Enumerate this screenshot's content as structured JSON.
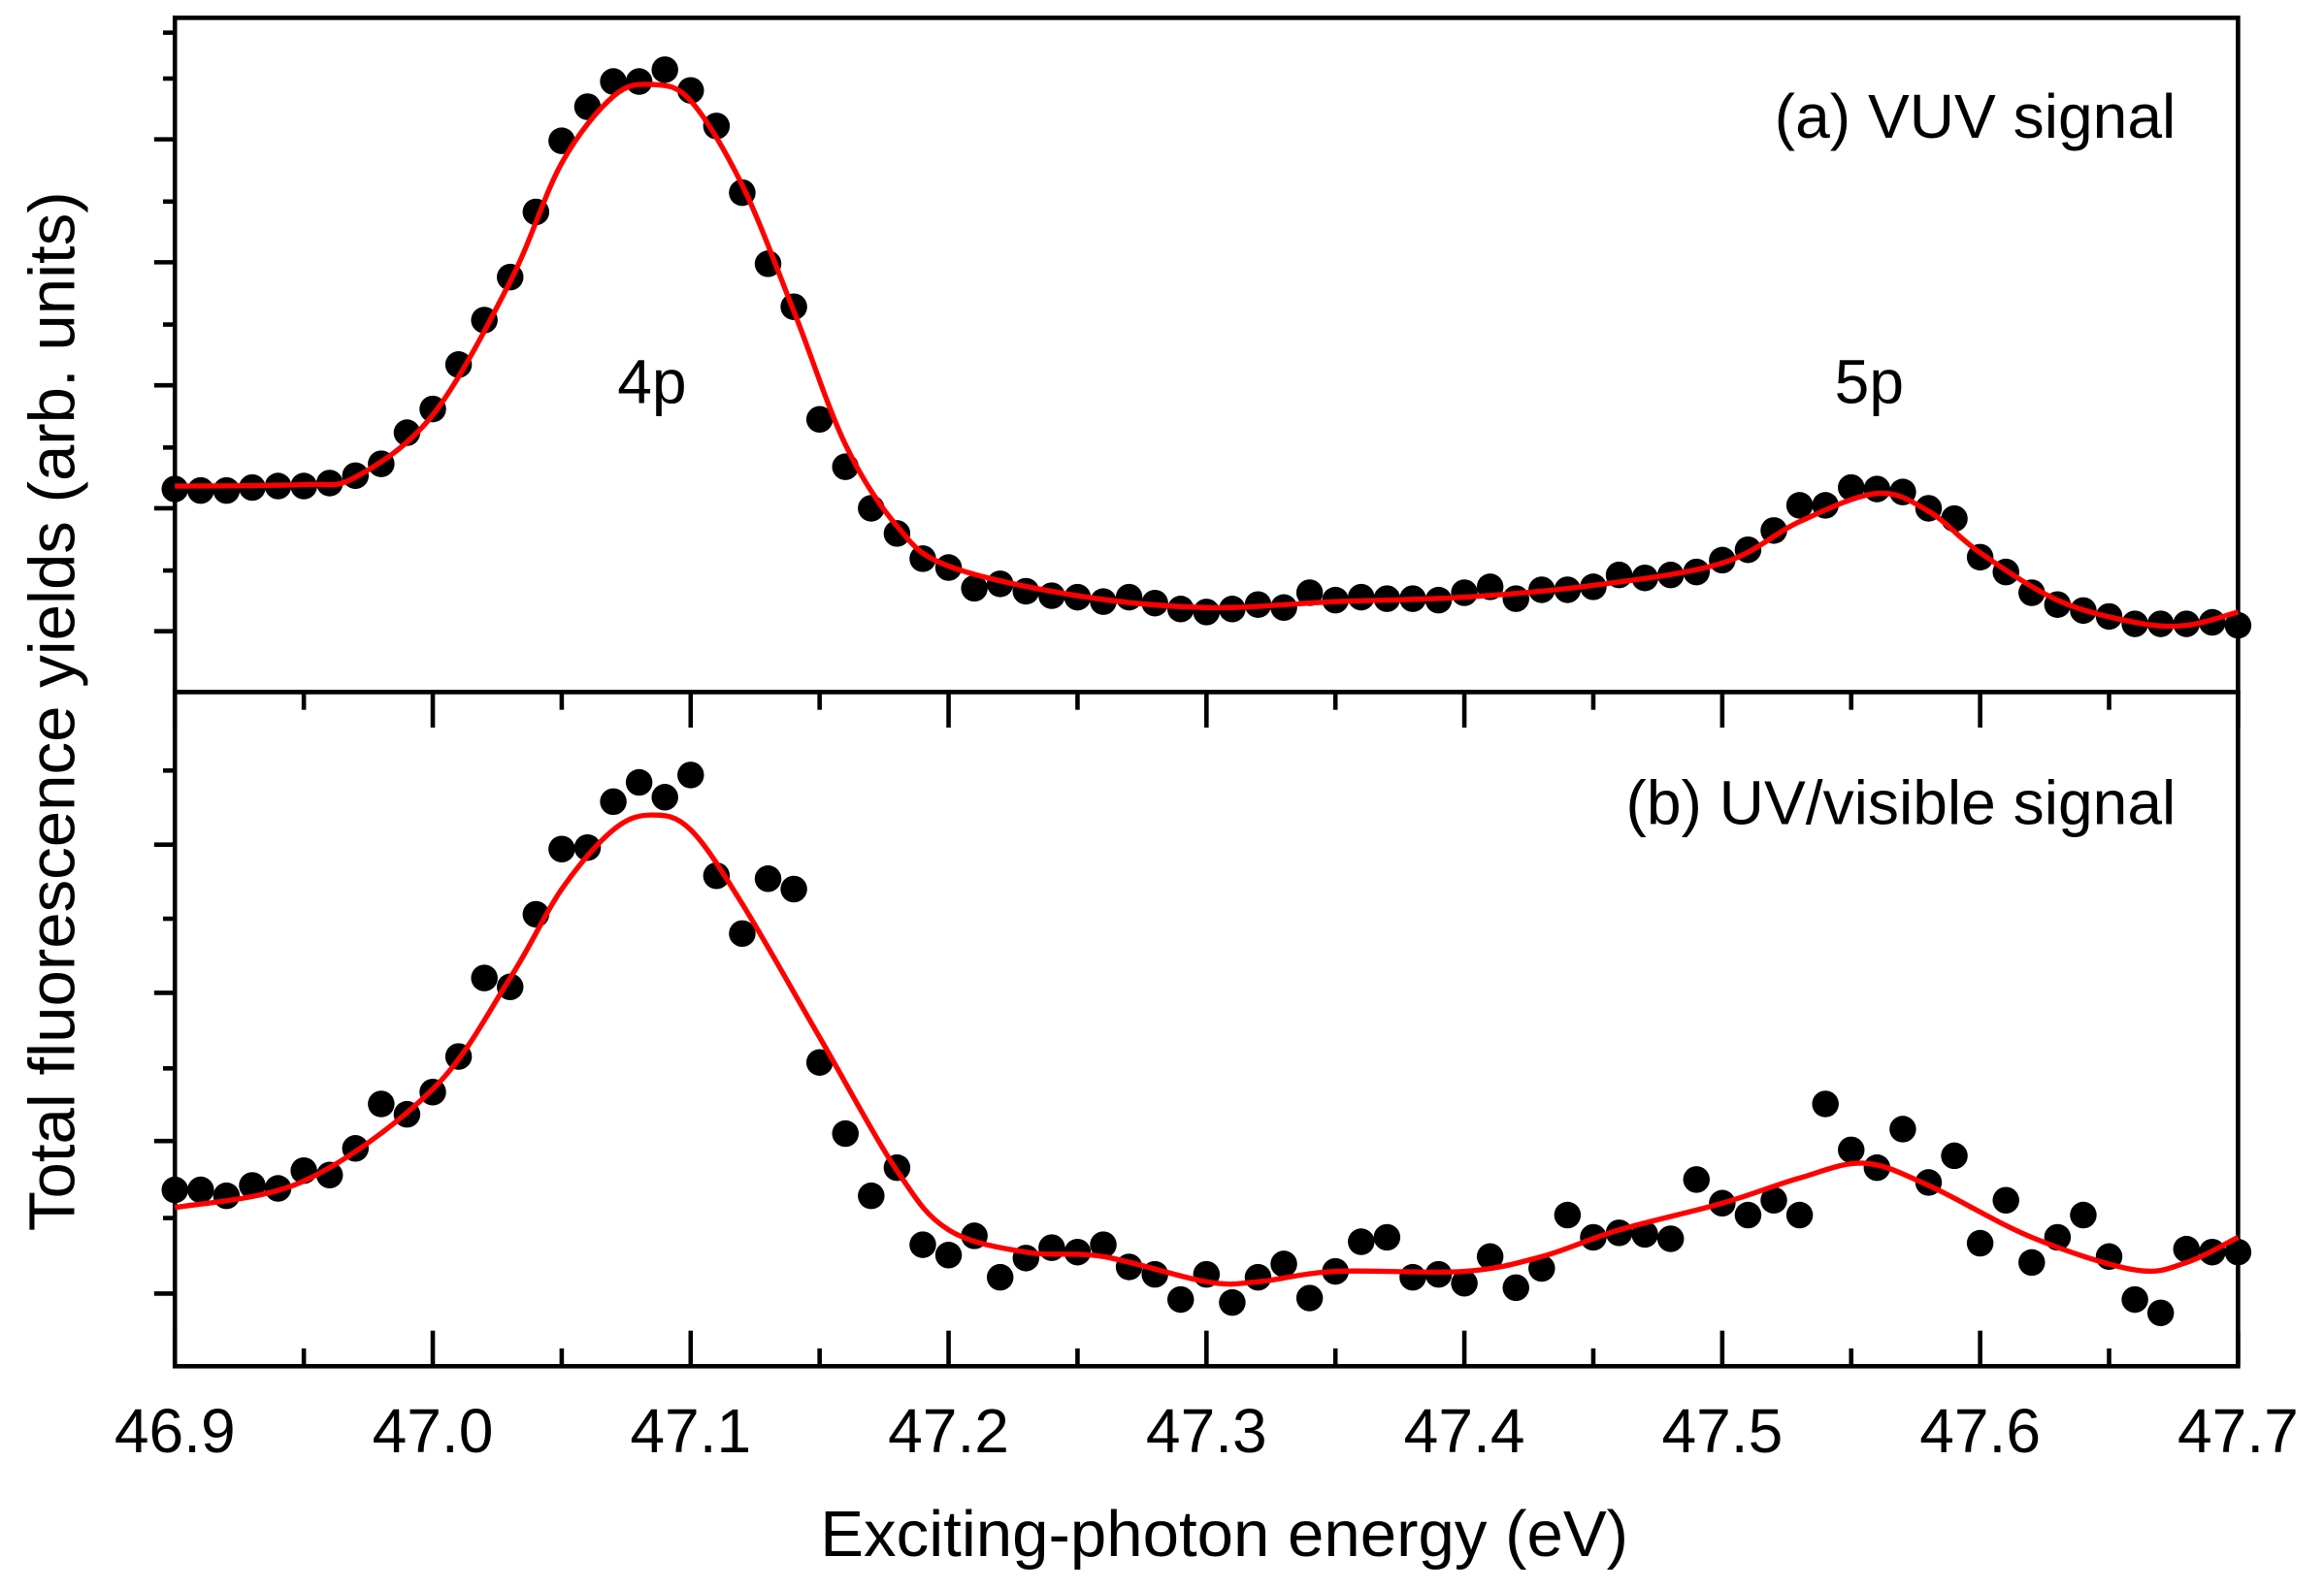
{
  "chart_data": {
    "type": "scatter",
    "xlabel": "Exciting-photon energy (eV)",
    "ylabel": "Total fluorescence yields (arb. units)",
    "xlim": [
      46.9,
      47.7
    ],
    "xticks_major": [
      46.9,
      47.0,
      47.1,
      47.2,
      47.3,
      47.4,
      47.5,
      47.6,
      47.7
    ],
    "xtick_labels": [
      "46.9",
      "47.0",
      "47.1",
      "47.2",
      "47.3",
      "47.4",
      "47.5",
      "47.6",
      "47.7"
    ],
    "xticks_minor": [
      46.95,
      47.05,
      47.15,
      47.25,
      47.35,
      47.45,
      47.55,
      47.65
    ],
    "fit_color": "#ff0000",
    "marker_color": "#000000",
    "x_start": 46.9,
    "x_step": 0.01,
    "panels": [
      {
        "label": "(a) VUV signal",
        "ylim": [
          0,
          455
        ],
        "yticks_major": [
          41,
          124,
          207,
          290,
          373
        ],
        "yticks_minor": [
          82,
          165,
          248,
          331,
          414,
          445
        ],
        "annotations": [
          {
            "text": "4p",
            "x": 47.085,
            "y": 225
          },
          {
            "text": "5p",
            "x": 47.557,
            "y": 225
          }
        ],
        "data": [
          137,
          136,
          136,
          138,
          139,
          139,
          141,
          146,
          154,
          175,
          191,
          221,
          251,
          280,
          324,
          372,
          395,
          412,
          412,
          420,
          406,
          382,
          337,
          289,
          260,
          184,
          152,
          124,
          107,
          90,
          84,
          70,
          73,
          68,
          65,
          64,
          61,
          64,
          60,
          56,
          54,
          56,
          59,
          57,
          67,
          62,
          64,
          63,
          63,
          62,
          67,
          71,
          63,
          69,
          69,
          71,
          79,
          77,
          79,
          81,
          89,
          96,
          109,
          126,
          126,
          138,
          137,
          135,
          124,
          117,
          91,
          81,
          67,
          59,
          55,
          51,
          46,
          46,
          46,
          47,
          45
        ],
        "fit": [
          [
            46.9,
            139
          ],
          [
            46.95,
            140
          ],
          [
            46.97,
            145
          ],
          [
            47.0,
            187
          ],
          [
            47.03,
            277
          ],
          [
            47.05,
            357
          ],
          [
            47.07,
            402
          ],
          [
            47.085,
            410
          ],
          [
            47.1,
            399
          ],
          [
            47.12,
            342
          ],
          [
            47.14,
            257
          ],
          [
            47.16,
            167
          ],
          [
            47.18,
            112
          ],
          [
            47.2,
            85
          ],
          [
            47.25,
            65
          ],
          [
            47.3,
            57
          ],
          [
            47.35,
            61
          ],
          [
            47.4,
            64
          ],
          [
            47.45,
            72
          ],
          [
            47.5,
            87
          ],
          [
            47.53,
            115
          ],
          [
            47.56,
            134
          ],
          [
            47.58,
            122
          ],
          [
            47.6,
            94
          ],
          [
            47.63,
            62
          ],
          [
            47.66,
            47
          ],
          [
            47.68,
            45
          ],
          [
            47.7,
            54
          ]
        ]
      },
      {
        "label": "(b) UV/visible signal",
        "ylim": [
          0,
          455
        ],
        "yticks_major": [
          49,
          152,
          252,
          352
        ],
        "yticks_minor": [
          100,
          201,
          302,
          402
        ],
        "annotations": [],
        "data": [
          119,
          119,
          115,
          122,
          120,
          132,
          129,
          147,
          177,
          170,
          185,
          209,
          262,
          256,
          305,
          349,
          350,
          381,
          394,
          384,
          399,
          331,
          292,
          329,
          322,
          205,
          157,
          115,
          134,
          82,
          75,
          88,
          60,
          73,
          80,
          77,
          82,
          67,
          62,
          45,
          62,
          43,
          60,
          69,
          46,
          64,
          84,
          87,
          60,
          62,
          56,
          74,
          53,
          66,
          102,
          87,
          90,
          89,
          86,
          126,
          110,
          102,
          112,
          102,
          177,
          146,
          134,
          160,
          124,
          142,
          83,
          112,
          70,
          87,
          102,
          74,
          45,
          36,
          79,
          77,
          77
        ],
        "fit": [
          [
            46.9,
            107
          ],
          [
            46.95,
            125
          ],
          [
            47.0,
            187
          ],
          [
            47.03,
            262
          ],
          [
            47.05,
            322
          ],
          [
            47.07,
            362
          ],
          [
            47.085,
            372
          ],
          [
            47.1,
            362
          ],
          [
            47.12,
            312
          ],
          [
            47.15,
            222
          ],
          [
            47.18,
            132
          ],
          [
            47.2,
            92
          ],
          [
            47.23,
            77
          ],
          [
            47.26,
            74
          ],
          [
            47.3,
            57
          ],
          [
            47.32,
            57
          ],
          [
            47.35,
            64
          ],
          [
            47.4,
            64
          ],
          [
            47.43,
            74
          ],
          [
            47.46,
            92
          ],
          [
            47.5,
            110
          ],
          [
            47.53,
            127
          ],
          [
            47.555,
            137
          ],
          [
            47.58,
            122
          ],
          [
            47.62,
            87
          ],
          [
            47.66,
            65
          ],
          [
            47.68,
            70
          ],
          [
            47.7,
            87
          ]
        ]
      }
    ]
  }
}
